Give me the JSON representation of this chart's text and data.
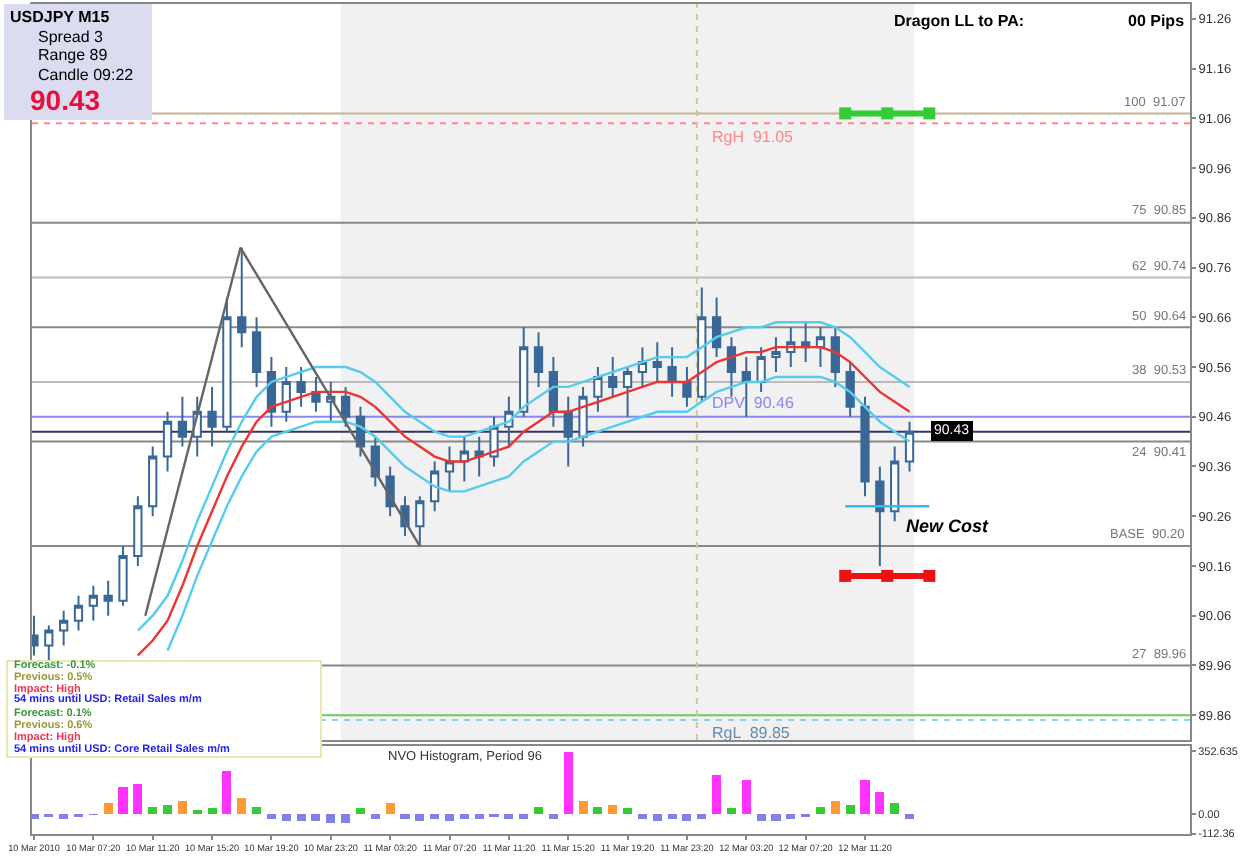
{
  "chart_data": [
    {
      "type": "candlestick",
      "color": "#3a6896",
      "tick_labels": "y",
      "x": [
        "2010-03-10T03:20",
        "2010-03-10T04:20",
        "2010-03-10T05:20",
        "2010-03-10T06:20",
        "2010-03-10T07:20",
        "2010-03-10T08:20",
        "2010-03-10T09:20",
        "2010-03-10T10:20",
        "2010-03-10T11:20",
        "2010-03-10T12:20",
        "2010-03-10T13:20",
        "2010-03-10T14:20",
        "2010-03-10T15:20",
        "2010-03-10T16:20",
        "2010-03-10T17:20",
        "2010-03-10T18:20",
        "2010-03-10T19:20",
        "2010-03-10T20:20",
        "2010-03-10T21:20",
        "2010-03-10T22:20",
        "2010-03-10T23:20",
        "2010-03-11T00:20",
        "2010-03-11T01:20",
        "2010-03-11T02:20",
        "2010-03-11T03:20",
        "2010-03-11T04:20",
        "2010-03-11T05:20",
        "2010-03-11T06:20",
        "2010-03-11T07:20",
        "2010-03-11T08:20",
        "2010-03-11T09:20",
        "2010-03-11T10:20",
        "2010-03-11T11:20",
        "2010-03-11T12:20",
        "2010-03-11T13:20",
        "2010-03-11T14:20",
        "2010-03-11T15:20",
        "2010-03-11T16:20",
        "2010-03-11T17:20",
        "2010-03-11T18:20",
        "2010-03-11T19:20",
        "2010-03-11T20:20",
        "2010-03-11T21:20",
        "2010-03-11T22:20",
        "2010-03-11T23:20",
        "2010-03-12T00:20",
        "2010-03-12T01:20",
        "2010-03-12T02:20",
        "2010-03-12T03:20",
        "2010-03-12T04:20",
        "2010-03-12T05:20",
        "2010-03-12T06:20",
        "2010-03-12T07:20",
        "2010-03-12T08:20",
        "2010-03-12T09:20",
        "2010-03-12T10:20",
        "2010-03-12T11:20",
        "2010-03-12T12:20",
        "2010-03-12T13:20",
        "2010-03-12T14:20"
      ],
      "ohlc": [
        [
          90.02,
          90.06,
          89.98,
          90.0
        ],
        [
          90.0,
          90.04,
          89.97,
          90.03
        ],
        [
          90.03,
          90.07,
          90.0,
          90.05
        ],
        [
          90.05,
          90.1,
          90.03,
          90.08
        ],
        [
          90.08,
          90.12,
          90.05,
          90.1
        ],
        [
          90.1,
          90.13,
          90.06,
          90.09
        ],
        [
          90.09,
          90.2,
          90.08,
          90.18
        ],
        [
          90.18,
          90.3,
          90.16,
          90.28
        ],
        [
          90.28,
          90.4,
          90.26,
          90.38
        ],
        [
          90.38,
          90.47,
          90.35,
          90.45
        ],
        [
          90.45,
          90.5,
          90.4,
          90.42
        ],
        [
          90.42,
          90.5,
          90.38,
          90.47
        ],
        [
          90.47,
          90.52,
          90.4,
          90.44
        ],
        [
          90.44,
          90.7,
          90.43,
          90.66
        ],
        [
          90.66,
          90.8,
          90.6,
          90.63
        ],
        [
          90.63,
          90.66,
          90.52,
          90.55
        ],
        [
          90.55,
          90.58,
          90.44,
          90.47
        ],
        [
          90.47,
          90.56,
          90.45,
          90.53
        ],
        [
          90.53,
          90.56,
          90.48,
          90.51
        ],
        [
          90.51,
          90.54,
          90.47,
          90.49
        ],
        [
          90.49,
          90.53,
          90.45,
          90.5
        ],
        [
          90.5,
          90.52,
          90.44,
          90.46
        ],
        [
          90.46,
          90.48,
          90.38,
          90.4
        ],
        [
          90.4,
          90.42,
          90.32,
          90.34
        ],
        [
          90.34,
          90.36,
          90.26,
          90.28
        ],
        [
          90.28,
          90.3,
          90.22,
          90.24
        ],
        [
          90.24,
          90.3,
          90.2,
          90.29
        ],
        [
          90.29,
          90.37,
          90.27,
          90.35
        ],
        [
          90.35,
          90.4,
          90.31,
          90.37
        ],
        [
          90.37,
          90.42,
          90.33,
          90.39
        ],
        [
          90.39,
          90.42,
          90.34,
          90.38
        ],
        [
          90.38,
          90.46,
          90.36,
          90.44
        ],
        [
          90.44,
          90.5,
          90.4,
          90.47
        ],
        [
          90.47,
          90.64,
          90.46,
          90.6
        ],
        [
          90.6,
          90.63,
          90.52,
          90.55
        ],
        [
          90.55,
          90.58,
          90.44,
          90.47
        ],
        [
          90.47,
          90.5,
          90.36,
          90.42
        ],
        [
          90.42,
          90.52,
          90.4,
          90.5
        ],
        [
          90.5,
          90.56,
          90.47,
          90.54
        ],
        [
          90.54,
          90.58,
          90.5,
          90.52
        ],
        [
          90.52,
          90.56,
          90.46,
          90.55
        ],
        [
          90.55,
          90.6,
          90.52,
          90.57
        ],
        [
          90.57,
          90.61,
          90.53,
          90.56
        ],
        [
          90.56,
          90.6,
          90.5,
          90.53
        ],
        [
          90.53,
          90.56,
          90.48,
          90.5
        ],
        [
          90.5,
          90.72,
          90.49,
          90.66
        ],
        [
          90.66,
          90.7,
          90.58,
          90.6
        ],
        [
          90.6,
          90.62,
          90.5,
          90.55
        ],
        [
          90.55,
          90.58,
          90.46,
          90.53
        ],
        [
          90.53,
          90.6,
          90.51,
          90.58
        ],
        [
          90.58,
          90.62,
          90.55,
          90.59
        ],
        [
          90.59,
          90.64,
          90.56,
          90.61
        ],
        [
          90.61,
          90.65,
          90.57,
          90.6
        ],
        [
          90.6,
          90.64,
          90.56,
          90.62
        ],
        [
          90.62,
          90.64,
          90.52,
          90.55
        ],
        [
          90.55,
          90.57,
          90.46,
          90.48
        ],
        [
          90.48,
          90.5,
          90.3,
          90.33
        ],
        [
          90.33,
          90.36,
          90.16,
          90.27
        ],
        [
          90.27,
          90.4,
          90.25,
          90.37
        ],
        [
          90.37,
          90.45,
          90.35,
          90.43
        ]
      ],
      "series": [
        {
          "type": "line",
          "color": "#ee3333",
          "values": [
            null,
            null,
            null,
            null,
            null,
            null,
            null,
            89.98,
            90.01,
            90.05,
            90.12,
            90.2,
            90.27,
            90.34,
            90.4,
            90.45,
            90.48,
            90.49,
            90.5,
            90.51,
            90.51,
            90.51,
            90.5,
            90.48,
            90.45,
            90.42,
            90.4,
            90.38,
            90.37,
            90.37,
            90.38,
            90.39,
            90.4,
            90.43,
            90.45,
            90.47,
            90.47,
            90.48,
            90.49,
            90.5,
            90.51,
            90.52,
            90.53,
            90.53,
            90.53,
            90.55,
            90.57,
            90.58,
            90.59,
            90.59,
            90.6,
            90.6,
            90.6,
            90.6,
            90.59,
            90.57,
            90.54,
            90.51,
            90.49,
            90.47
          ]
        },
        {
          "type": "line",
          "color": "#55ccee",
          "values": [
            null,
            null,
            null,
            null,
            null,
            null,
            null,
            90.03,
            90.06,
            90.1,
            90.17,
            90.25,
            90.32,
            90.39,
            90.45,
            90.5,
            90.53,
            90.54,
            90.55,
            90.56,
            90.56,
            90.56,
            90.55,
            90.53,
            90.5,
            90.47,
            90.45,
            90.43,
            90.42,
            90.42,
            90.43,
            90.44,
            90.45,
            90.48,
            90.5,
            90.52,
            90.52,
            90.53,
            90.54,
            90.55,
            90.56,
            90.57,
            90.58,
            90.58,
            90.58,
            90.6,
            90.62,
            90.63,
            90.64,
            90.64,
            90.65,
            90.65,
            90.65,
            90.65,
            90.64,
            90.62,
            90.59,
            90.56,
            90.54,
            90.52
          ]
        },
        {
          "type": "line",
          "color": "#55ccee",
          "values": [
            null,
            null,
            null,
            null,
            null,
            null,
            null,
            null,
            null,
            89.99,
            90.06,
            90.14,
            90.21,
            90.28,
            90.34,
            90.39,
            90.42,
            90.43,
            90.44,
            90.45,
            90.45,
            90.45,
            90.44,
            90.42,
            90.39,
            90.36,
            90.34,
            90.32,
            90.31,
            90.31,
            90.32,
            90.33,
            90.34,
            90.37,
            90.39,
            90.41,
            90.41,
            90.42,
            90.43,
            90.44,
            90.45,
            90.46,
            90.47,
            90.47,
            90.47,
            90.49,
            90.51,
            90.52,
            90.53,
            90.53,
            90.54,
            90.54,
            90.54,
            90.54,
            90.53,
            90.51,
            90.48,
            90.45,
            90.43,
            90.41
          ]
        },
        {
          "type": "line",
          "color": "#666666",
          "x": [
            "2010-03-10T10:50",
            "2010-03-10T17:15",
            "2010-03-11T05:20"
          ],
          "values": [
            90.06,
            90.8,
            90.2
          ]
        },
        {
          "type": "line",
          "color": "#33cc33",
          "marker": "square",
          "x": [
            "2010-03-12T10:00",
            "2010-03-12T12:50",
            "2010-03-12T15:40"
          ],
          "values": [
            91.07,
            91.07,
            91.07
          ]
        },
        {
          "type": "line",
          "color": "#33bbee",
          "x": [
            "2010-03-12T10:00",
            "2010-03-12T15:40"
          ],
          "values": [
            90.28,
            90.28
          ]
        },
        {
          "type": "line",
          "color": "#ee1111",
          "marker": "square",
          "x": [
            "2010-03-12T10:00",
            "2010-03-12T12:50",
            "2010-03-12T15:40"
          ],
          "values": [
            90.14,
            90.14,
            90.14
          ]
        }
      ],
      "xlim": [
        "2010-03-10T03:12",
        "2010-03-13T09:14"
      ],
      "ylim": [
        89.81,
        91.29
      ],
      "yticks": [
        91.26,
        91.16,
        91.06,
        90.96,
        90.86,
        90.76,
        90.66,
        90.56,
        90.46,
        90.36,
        90.26,
        90.16,
        90.06,
        89.96,
        89.86
      ],
      "bands": [
        {
          "axis": "x",
          "from": "2010-03-11T00:00",
          "to": "2010-03-12T14:40",
          "color": "#e8e8e8"
        }
      ],
      "ref_lines": [
        {
          "axis": "y",
          "value": 91.07,
          "label": "100  91.07",
          "color": "#c8b496"
        },
        {
          "axis": "y",
          "value": 91.05,
          "label": "RgH  91.05",
          "color": "#ff8888",
          "line_style": "dotted"
        },
        {
          "axis": "y",
          "value": 90.85,
          "label": "75  90.85",
          "color": "#888888"
        },
        {
          "axis": "y",
          "value": 90.74,
          "label": "62  90.74",
          "color": "#bbbbbb"
        },
        {
          "axis": "y",
          "value": 90.64,
          "label": "50  90.64",
          "color": "#888888"
        },
        {
          "axis": "y",
          "value": 90.53,
          "label": "38  90.53",
          "color": "#bbbbbb"
        },
        {
          "axis": "y",
          "value": 90.46,
          "label": "DPV  90.46",
          "color": "#8888ee"
        },
        {
          "axis": "y",
          "value": 90.43,
          "label": "90.43",
          "color": "#333366"
        },
        {
          "axis": "y",
          "value": 90.41,
          "label": "24  90.41",
          "color": "#888888"
        },
        {
          "axis": "y",
          "value": 90.2,
          "label": "BASE  90.20",
          "color": "#888888"
        },
        {
          "axis": "y",
          "value": 89.96,
          "label": "27  89.96",
          "color": "#888888"
        },
        {
          "axis": "y",
          "value": 89.86,
          "color": "#66cc66"
        },
        {
          "axis": "y",
          "value": 89.85,
          "label": "RgL  89.85",
          "color": "#99ccee",
          "line_style": "dotted"
        },
        {
          "axis": "x",
          "value": "2010-03-12T00:00",
          "color": "#cccc88",
          "line_style": "dotted"
        }
      ],
      "annotations": [
        "USDJPY   M15",
        "Spread  3",
        "Range  89",
        "Candle  09:22",
        "90.43",
        "Dragon LL to PA:",
        "00 Pips",
        "Forecast: -0.1%",
        "Previous: 0.5%",
        "Impact: High",
        "54 mins until USD: Retail Sales m/m",
        "Forecast: 0.1%",
        "Previous: 0.6%",
        "Impact: High",
        "54 mins until USD: Core Retail Sales m/m",
        "New Cost"
      ]
    },
    {
      "type": "bar",
      "title": "NVO Histogram, Period 96",
      "x": [
        "2010-03-10T03:20",
        "2010-03-10T04:20",
        "2010-03-10T05:20",
        "2010-03-10T06:20",
        "2010-03-10T07:20",
        "2010-03-10T08:20",
        "2010-03-10T09:20",
        "2010-03-10T10:20",
        "2010-03-10T11:20",
        "2010-03-10T12:20",
        "2010-03-10T13:20",
        "2010-03-10T14:20",
        "2010-03-10T15:20",
        "2010-03-10T16:20",
        "2010-03-10T17:20",
        "2010-03-10T18:20",
        "2010-03-10T19:20",
        "2010-03-10T20:20",
        "2010-03-10T21:20",
        "2010-03-10T22:20",
        "2010-03-10T23:20",
        "2010-03-11T00:20",
        "2010-03-11T01:20",
        "2010-03-11T02:20",
        "2010-03-11T03:20",
        "2010-03-11T04:20",
        "2010-03-11T05:20",
        "2010-03-11T06:20",
        "2010-03-11T07:20",
        "2010-03-11T08:20",
        "2010-03-11T09:20",
        "2010-03-11T10:20",
        "2010-03-11T11:20",
        "2010-03-11T12:20",
        "2010-03-11T13:20",
        "2010-03-11T14:20",
        "2010-03-11T15:20",
        "2010-03-11T16:20",
        "2010-03-11T17:20",
        "2010-03-11T18:20",
        "2010-03-11T19:20",
        "2010-03-11T20:20",
        "2010-03-11T21:20",
        "2010-03-11T22:20",
        "2010-03-11T23:20",
        "2010-03-12T00:20",
        "2010-03-12T01:20",
        "2010-03-12T02:20",
        "2010-03-12T03:20",
        "2010-03-12T04:20",
        "2010-03-12T05:20",
        "2010-03-12T06:20",
        "2010-03-12T07:20",
        "2010-03-12T08:20",
        "2010-03-12T09:20",
        "2010-03-12T10:20",
        "2010-03-12T11:20",
        "2010-03-12T12:20",
        "2010-03-12T13:20",
        "2010-03-12T14:20"
      ],
      "values": [
        -30,
        -20,
        -30,
        -20,
        -10,
        60,
        150,
        170,
        40,
        50,
        70,
        20,
        30,
        240,
        90,
        40,
        -30,
        -40,
        -40,
        -40,
        -50,
        -50,
        30,
        -30,
        60,
        -30,
        -40,
        -30,
        -40,
        -30,
        -30,
        -20,
        -30,
        -30,
        40,
        -30,
        350,
        70,
        40,
        50,
        30,
        -30,
        -40,
        -30,
        -40,
        -30,
        220,
        30,
        190,
        -40,
        -40,
        -30,
        -20,
        40,
        70,
        50,
        190,
        120,
        60,
        -30
      ],
      "colors": [
        "#8080e6",
        "#8080e6",
        "#8080e6",
        "#8080e6",
        "#8080e6",
        "#ff9933",
        "#ff33ff",
        "#ff33ff",
        "#33cc33",
        "#33cc33",
        "#ff9933",
        "#33cc33",
        "#33cc33",
        "#ff33ff",
        "#ff9933",
        "#33cc33",
        "#8080e6",
        "#8080e6",
        "#8080e6",
        "#8080e6",
        "#8080e6",
        "#8080e6",
        "#33cc33",
        "#8080e6",
        "#ff9933",
        "#8080e6",
        "#8080e6",
        "#8080e6",
        "#8080e6",
        "#8080e6",
        "#8080e6",
        "#8080e6",
        "#8080e6",
        "#8080e6",
        "#33cc33",
        "#8080e6",
        "#ff33ff",
        "#ff9933",
        "#33cc33",
        "#ff9933",
        "#33cc33",
        "#8080e6",
        "#8080e6",
        "#8080e6",
        "#8080e6",
        "#8080e6",
        "#ff33ff",
        "#33cc33",
        "#ff33ff",
        "#8080e6",
        "#8080e6",
        "#8080e6",
        "#8080e6",
        "#33cc33",
        "#ff9933",
        "#33cc33",
        "#ff33ff",
        "#ff33ff",
        "#33cc33",
        "#8080e6"
      ],
      "xlim": [
        "2010-03-10T03:12",
        "2010-03-13T09:14"
      ],
      "xticks": [
        {
          "value": "2010-03-10T03:20",
          "label": "10 Mar 2010"
        },
        {
          "value": "2010-03-10T07:20",
          "label": "10 Mar 07:20"
        },
        {
          "value": "2010-03-10T11:20",
          "label": "10 Mar 11:20"
        },
        {
          "value": "2010-03-10T15:20",
          "label": "10 Mar 15:20"
        },
        {
          "value": "2010-03-10T19:20",
          "label": "10 Mar 19:20"
        },
        {
          "value": "2010-03-10T23:20",
          "label": "10 Mar 23:20"
        },
        {
          "value": "2010-03-11T03:20",
          "label": "11 Mar 03:20"
        },
        {
          "value": "2010-03-11T07:20",
          "label": "11 Mar 07:20"
        },
        {
          "value": "2010-03-11T11:20",
          "label": "11 Mar 11:20"
        },
        {
          "value": "2010-03-11T15:20",
          "label": "11 Mar 15:20"
        },
        {
          "value": "2010-03-11T19:20",
          "label": "11 Mar 19:20"
        },
        {
          "value": "2010-03-11T23:20",
          "label": "11 Mar 23:20"
        },
        {
          "value": "2010-03-12T03:20",
          "label": "12 Mar 03:20"
        },
        {
          "value": "2010-03-12T07:20",
          "label": "12 Mar 07:20"
        },
        {
          "value": "2010-03-12T11:20",
          "label": "12 Mar 11:20"
        }
      ],
      "ylim": [
        -115,
        382
      ],
      "yticks": [
        352.635,
        {
          "value": 0,
          "label": "0.00"
        },
        -112.36
      ]
    }
  ]
}
